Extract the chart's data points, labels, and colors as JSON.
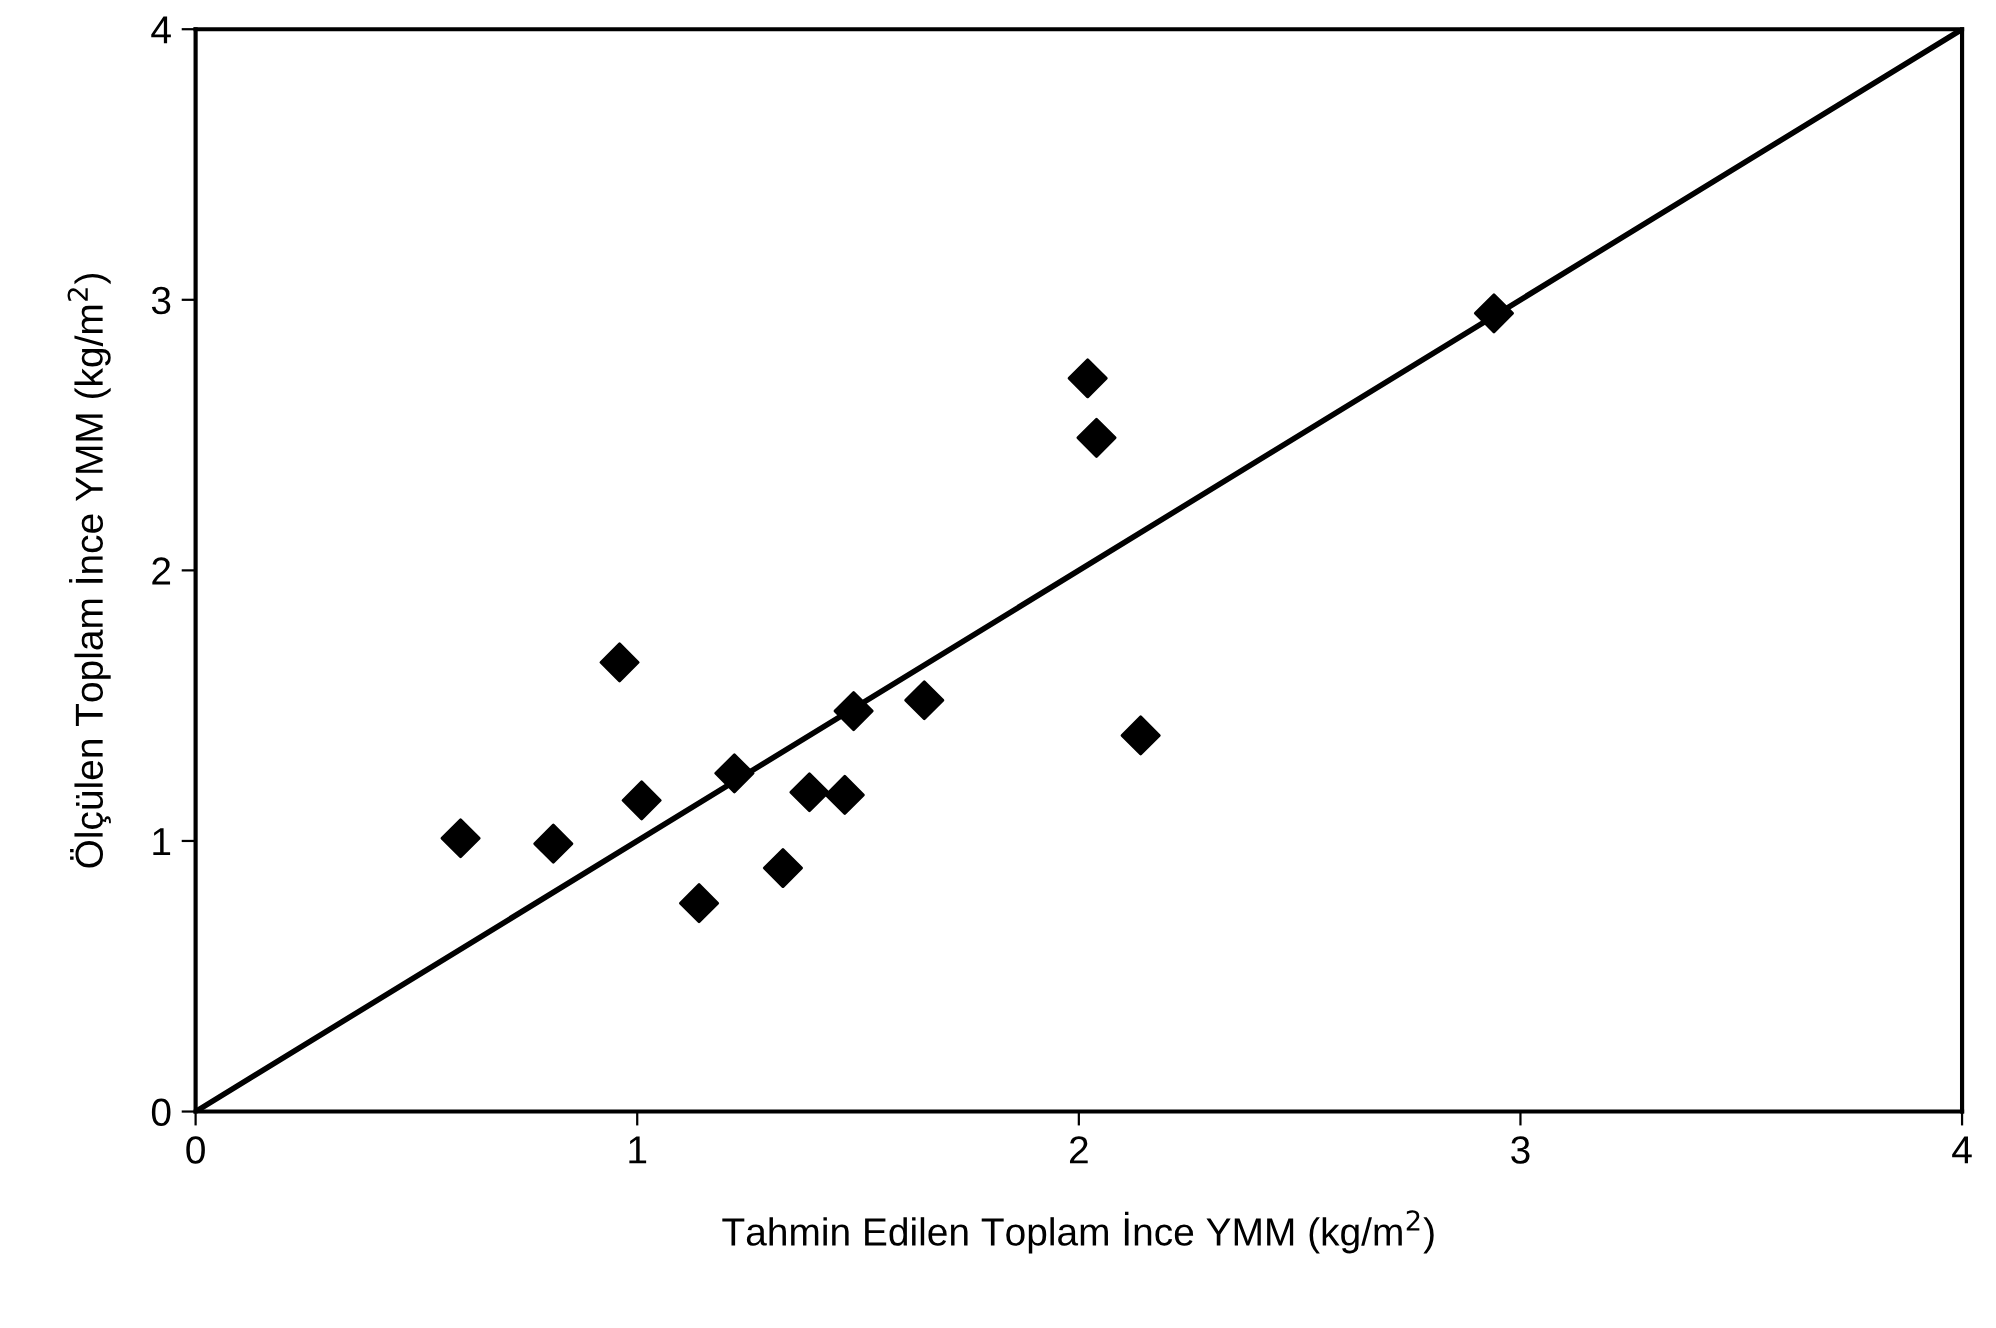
{
  "chart_data": {
    "type": "scatter",
    "xlabel": "Tahmin Edilen Toplam İnce YMM (kg/m$^{2}$)",
    "ylabel": "Ölçülen Toplam İnce YMM (kg/m$^{2}$)",
    "xlim": [
      0,
      4
    ],
    "ylim": [
      0,
      4
    ],
    "xticks": [
      0,
      1,
      2,
      3,
      4
    ],
    "yticks": [
      0,
      1,
      2,
      3,
      4
    ],
    "grid": false,
    "marker": "diamond",
    "series": [
      {
        "color": "#000000",
        "x": [
          0.6,
          0.81,
          0.96,
          1.01,
          1.14,
          1.22,
          1.33,
          1.39,
          1.47,
          1.49,
          1.65,
          2.02,
          2.04,
          2.14,
          2.94
        ],
        "values": [
          1.01,
          0.99,
          1.66,
          1.15,
          0.77,
          1.25,
          0.9,
          1.18,
          1.17,
          1.48,
          1.52,
          2.71,
          2.49,
          1.39,
          2.95
        ]
      },
      {
        "type": "line",
        "color": "#000000",
        "x": [
          0,
          4
        ],
        "values": [
          0,
          4
        ],
        "line_style": "solid",
        "marker": "none"
      }
    ]
  }
}
